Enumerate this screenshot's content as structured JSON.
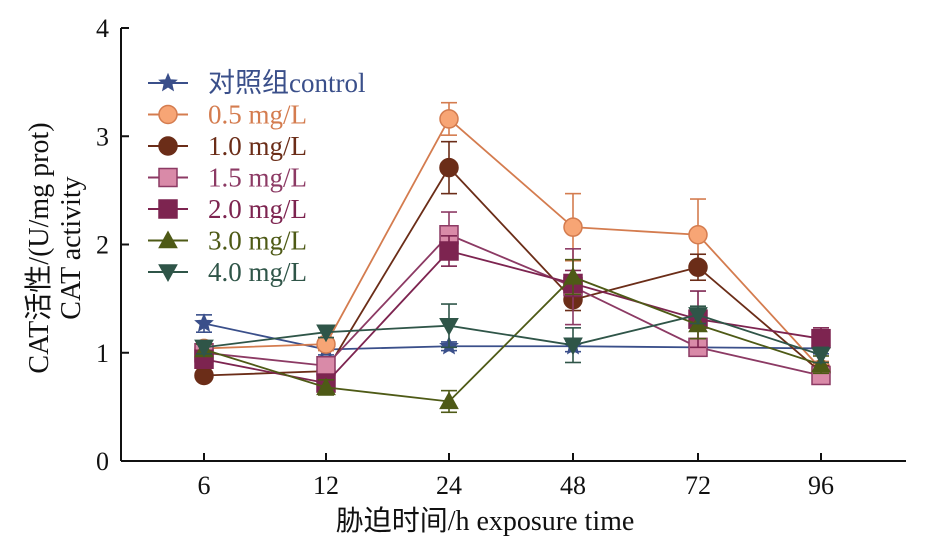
{
  "chart_data": {
    "type": "line",
    "xlabel": "胁迫时间/h exposure time",
    "ylabel": [
      "CAT活性/(U/mg prot)",
      "CAT activity"
    ],
    "categories": [
      "6",
      "12",
      "24",
      "48",
      "72",
      "96"
    ],
    "yticks": [
      "0",
      "1",
      "2",
      "3",
      "4"
    ],
    "ylim": [
      0,
      4
    ],
    "grid": false,
    "legend_position": "top-left",
    "series": [
      {
        "name": "对照组control",
        "color": "#3a4f8a",
        "marker": "star",
        "values": [
          1.27,
          1.03,
          1.06,
          1.06,
          1.05,
          1.04
        ],
        "errors": [
          0.08,
          0.05,
          0.04,
          0.05,
          0.06,
          0.05
        ]
      },
      {
        "name": "0.5 mg/L",
        "color": "#d47c4f",
        "marker": "circle-open",
        "values": [
          1.04,
          1.08,
          3.16,
          2.16,
          2.09,
          0.85
        ],
        "errors": [
          0.06,
          0.06,
          0.15,
          0.31,
          0.33,
          0.07
        ]
      },
      {
        "name": "1.0 mg/L",
        "color": "#6b2d18",
        "marker": "circle",
        "values": [
          0.79,
          0.83,
          2.71,
          1.49,
          1.79,
          0.82
        ],
        "errors": [
          0.04,
          0.05,
          0.24,
          0.1,
          0.12,
          0.06
        ]
      },
      {
        "name": "1.5 mg/L",
        "color": "#8c3a64",
        "marker": "square-open",
        "values": [
          1.0,
          0.88,
          2.09,
          1.61,
          1.05,
          0.79
        ],
        "errors": [
          0.05,
          0.05,
          0.21,
          0.35,
          0.07,
          0.05
        ]
      },
      {
        "name": "2.0 mg/L",
        "color": "#7d2450",
        "marker": "square",
        "values": [
          0.94,
          0.72,
          1.94,
          1.64,
          1.31,
          1.13
        ],
        "errors": [
          0.05,
          0.06,
          0.14,
          0.12,
          0.26,
          0.1
        ]
      },
      {
        "name": "3.0 mg/L",
        "color": "#4e5a16",
        "marker": "triangle-up",
        "values": [
          1.03,
          0.68,
          0.55,
          1.7,
          1.26,
          0.89
        ],
        "errors": [
          0.05,
          0.07,
          0.1,
          0.16,
          0.13,
          0.08
        ]
      },
      {
        "name": "4.0 mg/L",
        "color": "#2f5548",
        "marker": "triangle-down",
        "values": [
          1.05,
          1.19,
          1.25,
          1.07,
          1.35,
          0.98
        ],
        "errors": [
          0.06,
          0.05,
          0.2,
          0.16,
          0.08,
          0.07
        ]
      }
    ]
  }
}
